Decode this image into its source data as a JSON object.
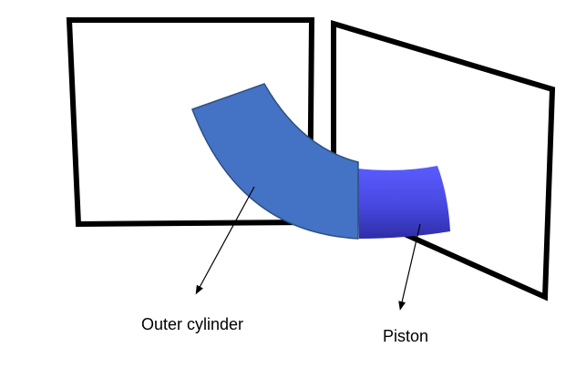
{
  "labels": {
    "outer_cylinder": "Outer cylinder",
    "piston": "Piston"
  },
  "colors": {
    "frame_stroke": "#000000",
    "outer_cylinder_fill": "#4472C4",
    "outer_cylinder_stroke": "#2F4F7F",
    "piston_fill_light": "#5A5CFF",
    "piston_fill_dark": "#2E2EA8",
    "background": "#FFFFFF"
  }
}
